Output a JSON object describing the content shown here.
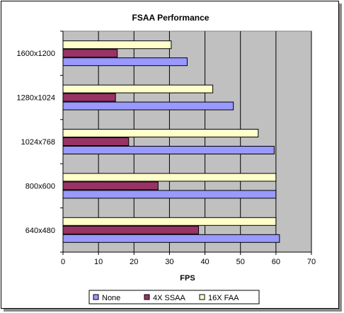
{
  "chart_data": {
    "type": "bar",
    "orientation": "horizontal",
    "title": "FSAA Performance",
    "xlabel": "FPS",
    "ylabel": "",
    "xlim": [
      0,
      70
    ],
    "xticks": [
      0,
      10,
      20,
      30,
      40,
      50,
      60,
      70
    ],
    "grid": true,
    "legend_position": "bottom",
    "categories": [
      "1600x1200",
      "1280x1024",
      "1024x768",
      "800x600",
      "640x480"
    ],
    "series": [
      {
        "name": "None",
        "color": "#9999FF",
        "values": [
          35,
          48,
          59.5,
          60,
          61
        ]
      },
      {
        "name": "4X SSAA",
        "color": "#993366",
        "values": [
          15.3,
          14.8,
          18.5,
          26.8,
          38.2
        ]
      },
      {
        "name": "16X FAA",
        "color": "#FFFFCC",
        "values": [
          30.5,
          42.2,
          55,
          60,
          60
        ]
      }
    ],
    "plot_background": "#C0C0C0"
  }
}
